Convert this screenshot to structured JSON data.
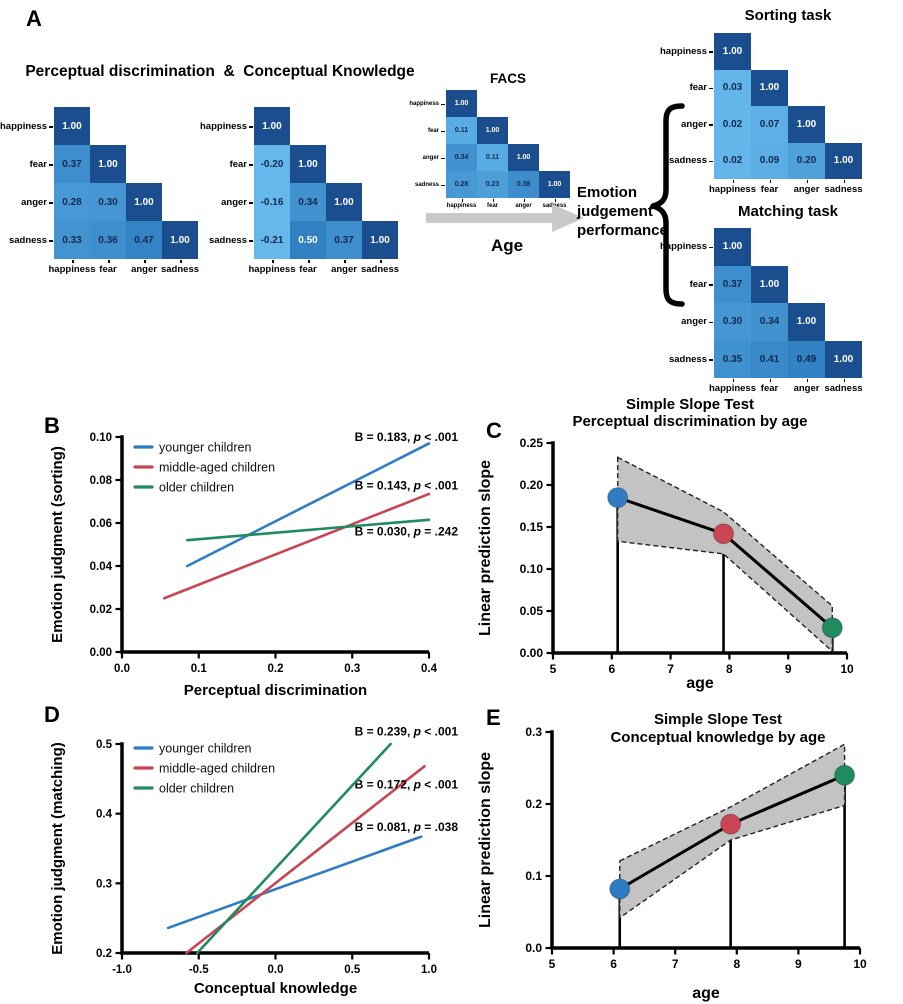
{
  "panels": {
    "a": "A",
    "b": "B",
    "c": "C",
    "d": "D",
    "e": "E"
  },
  "colors": {
    "younger": "#2e7cc1",
    "middle": "#c94553",
    "older": "#1f8b5f",
    "band": "#c3c3c3",
    "arrow": "#c9c9c9",
    "heat_scale": [
      "#65b7ec",
      "#3080c2",
      "#1b4e8e"
    ],
    "cell_text_dark": "#0e2a4d",
    "cell_text_light": "#ffffff"
  },
  "panel_a": {
    "combined_title": "Perceptual discrimination  &  Conceptual Knowledge",
    "emotions": [
      "happiness",
      "fear",
      "anger",
      "sadness"
    ],
    "matrices": {
      "perceptual": {
        "values": [
          [
            1.0
          ],
          [
            0.37,
            1.0
          ],
          [
            0.28,
            0.3,
            1.0
          ],
          [
            0.33,
            0.36,
            0.47,
            1.0
          ]
        ]
      },
      "conceptual": {
        "values": [
          [
            1.0
          ],
          [
            -0.2,
            1.0
          ],
          [
            -0.16,
            0.34,
            1.0
          ],
          [
            -0.21,
            0.5,
            0.37,
            1.0
          ]
        ]
      },
      "facs": {
        "title": "FACS",
        "values": [
          [
            1.0
          ],
          [
            0.11,
            1.0
          ],
          [
            0.34,
            0.11,
            1.0
          ],
          [
            0.28,
            0.23,
            0.38,
            1.0
          ]
        ]
      },
      "sorting": {
        "title": "Sorting task",
        "values": [
          [
            1.0
          ],
          [
            0.03,
            1.0
          ],
          [
            0.02,
            0.07,
            1.0
          ],
          [
            0.02,
            0.09,
            0.2,
            1.0
          ]
        ]
      },
      "matching": {
        "title": "Matching task",
        "values": [
          [
            1.0
          ],
          [
            0.37,
            1.0
          ],
          [
            0.3,
            0.34,
            1.0
          ],
          [
            0.35,
            0.41,
            0.49,
            1.0
          ]
        ]
      }
    },
    "age_label": "Age",
    "outcome_label_lines": [
      "Emotion",
      "judgement",
      "performance"
    ]
  },
  "chart_data": [
    {
      "panel": "B",
      "type": "line",
      "xlabel": "Perceptual discrimination",
      "ylabel": "Emotion judgment (sorting)",
      "xlim": [
        0,
        0.4
      ],
      "ylim": [
        0,
        0.1
      ],
      "xtick_values": [
        0,
        0.1,
        0.2,
        0.3,
        0.4
      ],
      "xtick_labels": [
        "0.0",
        "0.1",
        "0.2",
        "0.3",
        "0.4"
      ],
      "ytick_values": [
        0,
        0.02,
        0.04,
        0.06,
        0.08,
        0.1
      ],
      "ytick_labels": [
        "0.00",
        "0.02",
        "0.04",
        "0.06",
        "0.08",
        "0.10"
      ],
      "series": [
        {
          "name": "younger children",
          "color": "younger",
          "x": [
            0.085,
            0.4
          ],
          "y": [
            0.04,
            0.097
          ],
          "annotation": "B = 0.183, p < .001",
          "ann_y": 0.1
        },
        {
          "name": "middle-aged children",
          "color": "middle",
          "x": [
            0.055,
            0.4
          ],
          "y": [
            0.025,
            0.0735
          ],
          "annotation": "B = 0.143, p < .001",
          "ann_y": 0.0775
        },
        {
          "name": "older children",
          "color": "older",
          "x": [
            0.085,
            0.4
          ],
          "y": [
            0.052,
            0.0615
          ],
          "annotation": "B = 0.030, p = .242",
          "ann_y": 0.056
        }
      ]
    },
    {
      "panel": "C",
      "type": "slope-band",
      "title_lines": [
        "Simple Slope Test",
        "Perceptual discrimination by age"
      ],
      "xlabel": "age",
      "ylabel": "Linear prediction slope",
      "xlim": [
        5,
        10
      ],
      "ylim": [
        0,
        0.25
      ],
      "xtick_values": [
        5,
        6,
        7,
        8,
        9,
        10
      ],
      "xtick_labels": [
        "5",
        "6",
        "7",
        "8",
        "9",
        "10"
      ],
      "ytick_values": [
        0,
        0.05,
        0.1,
        0.15,
        0.2,
        0.25
      ],
      "ytick_labels": [
        "0.00",
        "0.05",
        "0.10",
        "0.15",
        "0.20",
        "0.25"
      ],
      "x": [
        6.1,
        7.9,
        9.75
      ],
      "slope": [
        0.185,
        0.142,
        0.03
      ],
      "ci_upper": [
        0.233,
        0.168,
        0.056
      ],
      "ci_lower": [
        0.133,
        0.118,
        0.002
      ],
      "point_colors": [
        "younger",
        "middle",
        "older"
      ]
    },
    {
      "panel": "D",
      "type": "line",
      "xlabel": "Conceptual knowledge",
      "ylabel": "Emotion judgment (matching)",
      "xlim": [
        -1,
        1
      ],
      "ylim": [
        0.2,
        0.5
      ],
      "xtick_values": [
        -1,
        -0.5,
        0,
        0.5,
        1
      ],
      "xtick_labels": [
        "-1.0",
        "-0.5",
        "0.0",
        "0.5",
        "1.0"
      ],
      "ytick_values": [
        0.2,
        0.3,
        0.4,
        0.5
      ],
      "ytick_labels": [
        "0.2",
        "0.3",
        "0.4",
        "0.5"
      ],
      "series": [
        {
          "name": "younger children",
          "color": "younger",
          "x": [
            -0.7,
            0.95
          ],
          "y": [
            0.236,
            0.367
          ],
          "annotation": "B = 0.081, p = .038",
          "ann_y": 0.381
        },
        {
          "name": "middle-aged children",
          "color": "middle",
          "x": [
            -0.58,
            0.97
          ],
          "y": [
            0.2,
            0.468
          ],
          "annotation": "B = 0.172, p < .001",
          "ann_y": 0.442
        },
        {
          "name": "older children",
          "color": "older",
          "x": [
            -0.51,
            0.75
          ],
          "y": [
            0.2,
            0.5
          ],
          "annotation": "B = 0.239, p < .001",
          "ann_y": 0.518
        }
      ]
    },
    {
      "panel": "E",
      "type": "slope-band",
      "title_lines": [
        "Simple Slope Test",
        "Conceptual knowledge by age"
      ],
      "xlabel": "age",
      "ylabel": "Linear prediction slope",
      "xlim": [
        5,
        10
      ],
      "ylim": [
        0,
        0.3
      ],
      "xtick_values": [
        5,
        6,
        7,
        8,
        9,
        10
      ],
      "xtick_labels": [
        "5",
        "6",
        "7",
        "8",
        "9",
        "10"
      ],
      "ytick_values": [
        0,
        0.1,
        0.2,
        0.3
      ],
      "ytick_labels": [
        "0.0",
        "0.1",
        "0.2",
        "0.3"
      ],
      "x": [
        6.1,
        7.9,
        9.75
      ],
      "slope": [
        0.082,
        0.172,
        0.24
      ],
      "ci_upper": [
        0.121,
        0.196,
        0.283
      ],
      "ci_lower": [
        0.042,
        0.15,
        0.198
      ],
      "point_colors": [
        "younger",
        "middle",
        "older"
      ]
    }
  ]
}
